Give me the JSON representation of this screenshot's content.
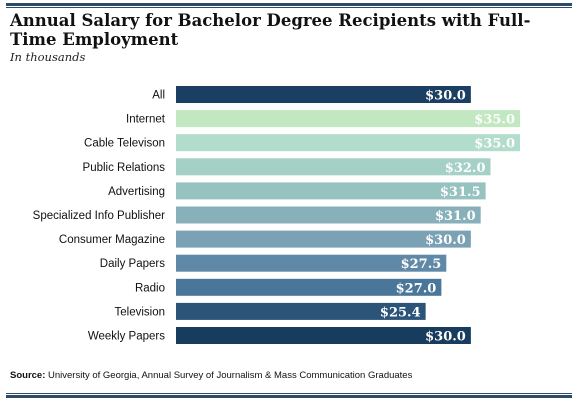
{
  "title": "Annual Salary for Bachelor Degree Recipients with Full-Time Employment",
  "subtitle": "In thousands",
  "source_label": "Source:",
  "source_text": "University of Georgia, Annual Survey of Journalism & Mass Communication Graduates",
  "chart_data": {
    "type": "bar",
    "orientation": "horizontal",
    "title": "Annual Salary for Bachelor Degree Recipients with Full-Time Employment",
    "subtitle": "In thousands",
    "categories": [
      "All",
      "Internet",
      "Cable Televison",
      "Public Relations",
      "Advertising",
      "Specialized Info Publisher",
      "Consumer Magazine",
      "Daily Papers",
      "Radio",
      "Television",
      "Weekly Papers"
    ],
    "values": [
      30.0,
      35.0,
      35.0,
      32.0,
      31.5,
      31.0,
      30.0,
      27.5,
      27.0,
      25.4,
      30.0
    ],
    "value_labels": [
      "$30.0",
      "$35.0",
      "$35.0",
      "$32.0",
      "$31.5",
      "$31.0",
      "$30.0",
      "$27.5",
      "$27.0",
      "$25.4",
      "$30.0"
    ],
    "bar_colors": [
      "#1b3f63",
      "#c2e8c2",
      "#b2dccb",
      "#a4d0c6",
      "#96c2c0",
      "#87b0bb",
      "#7ba2b4",
      "#5f89a6",
      "#4a7699",
      "#2c5479",
      "#183c5e"
    ],
    "label_colors": [
      "#ffffff",
      "#ffffff",
      "#ffffff",
      "#ffffff",
      "#ffffff",
      "#ffffff",
      "#ffffff",
      "#ffffff",
      "#ffffff",
      "#ffffff",
      "#ffffff"
    ],
    "xlim": [
      0,
      35
    ],
    "grid": false,
    "legend": "none"
  }
}
